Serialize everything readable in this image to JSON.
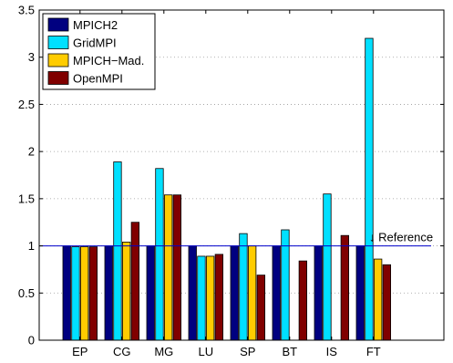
{
  "chart_data": {
    "type": "bar",
    "title": "",
    "xlabel": "",
    "ylabel": "",
    "categories": [
      "EP",
      "CG",
      "MG",
      "LU",
      "SP",
      "BT",
      "IS",
      "FT"
    ],
    "ylim": [
      0,
      3.5
    ],
    "yticks": [
      0,
      0.5,
      1,
      1.5,
      2,
      2.5,
      3,
      3.5
    ],
    "ytick_labels": [
      "0",
      "0.5",
      "1",
      "1.5",
      "2",
      "2.5",
      "3",
      "3.5"
    ],
    "grid": "dotted horizontal",
    "legend_position": "top-left",
    "series": [
      {
        "name": "MPICH2",
        "color": "#000080",
        "values": [
          1.0,
          1.0,
          1.0,
          1.0,
          1.0,
          1.0,
          1.0,
          1.0
        ]
      },
      {
        "name": "GridMPI",
        "color": "#00e0ff",
        "values": [
          0.99,
          1.89,
          1.82,
          0.89,
          1.13,
          1.17,
          1.55,
          3.2
        ]
      },
      {
        "name": "MPICH−Mad.",
        "color": "#ffcc00",
        "values": [
          0.99,
          1.04,
          1.54,
          0.89,
          1.0,
          null,
          null,
          0.86
        ]
      },
      {
        "name": "OpenMPI",
        "color": "#800000",
        "values": [
          0.99,
          1.25,
          1.54,
          0.91,
          0.69,
          0.84,
          1.11,
          0.8
        ]
      }
    ],
    "reference": {
      "value": 1.0,
      "label": "↓ Reference",
      "color": "#0000cc"
    }
  }
}
